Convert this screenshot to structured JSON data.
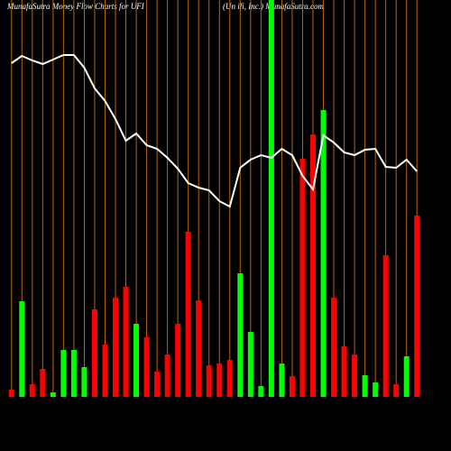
{
  "chart_data": {
    "type": "bar",
    "title": "MunafaSutra  Money Flow  Charts for UFI",
    "subtitle": "(Un          ifi,  Inc.) MunafaSutra.com",
    "ylim": [
      0,
      440
    ],
    "grid_color": "#b8660b",
    "line_color": "#ffffff",
    "series": [
      {
        "name": "money flow",
        "values": [
          8,
          106,
          14,
          31,
          5,
          52,
          52,
          33,
          97,
          58,
          110,
          122,
          81,
          66,
          28,
          47,
          81,
          183,
          107,
          35,
          37,
          41,
          137,
          72,
          12,
          440,
          37,
          23,
          264,
          291,
          318,
          110,
          56,
          47,
          24,
          16,
          157,
          14,
          45,
          201
        ],
        "colors": [
          "#ff0000",
          "#00ff00",
          "#ff0000",
          "#ff0000",
          "#00ff00",
          "#00ff00",
          "#00ff00",
          "#00ff00",
          "#ff0000",
          "#ff0000",
          "#ff0000",
          "#ff0000",
          "#00ff00",
          "#ff0000",
          "#ff0000",
          "#ff0000",
          "#ff0000",
          "#ff0000",
          "#ff0000",
          "#ff0000",
          "#ff0000",
          "#ff0000",
          "#00ff00",
          "#00ff00",
          "#00ff00",
          "#00ff00",
          "#00ff00",
          "#ff0000",
          "#ff0000",
          "#ff0000",
          "#00ff00",
          "#ff0000",
          "#ff0000",
          "#ff0000",
          "#00ff00",
          "#00ff00",
          "#ff0000",
          "#ff0000",
          "#00ff00",
          "#ff0000"
        ]
      },
      {
        "name": "price",
        "values": [
          370,
          378,
          373,
          369,
          374,
          379,
          379,
          365,
          342,
          328,
          308,
          284,
          292,
          279,
          275,
          265,
          253,
          237,
          232,
          229,
          217,
          211,
          254,
          263,
          268,
          265,
          275,
          268,
          245,
          230,
          290,
          282,
          271,
          268,
          274,
          275,
          255,
          254,
          263,
          250
        ]
      }
    ]
  }
}
